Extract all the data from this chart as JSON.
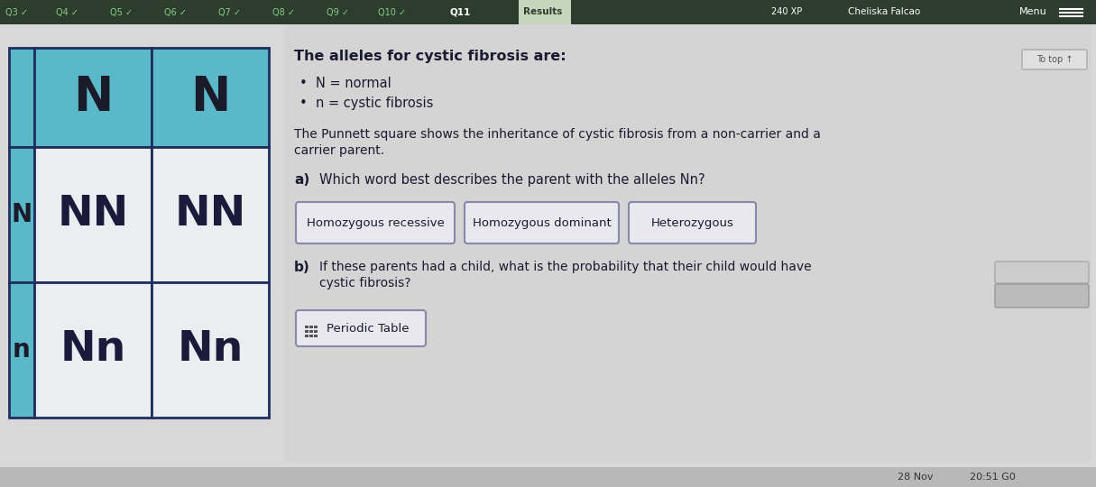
{
  "bg_color": "#d8d8d8",
  "top_bar_color": "#2d3d2d",
  "nav_items": [
    "Q3",
    "Q4",
    "Q5",
    "Q6",
    "Q7",
    "Q8",
    "Q9",
    "Q10",
    "Q11",
    "Results"
  ],
  "nav_checks": [
    true,
    true,
    true,
    true,
    true,
    true,
    true,
    true,
    false,
    false
  ],
  "nav_active_idx": 8,
  "nav_highlight_idx": 9,
  "top_right_xp": "240 XP",
  "top_right_name": "Cheliska Falcao",
  "top_right_menu": "Menu",
  "punnett_teal": "#5bb8c8",
  "punnett_white": "#eaeef0",
  "punnett_border": "#1e2e5e",
  "punnett_header_letters": [
    "N",
    "N"
  ],
  "punnett_row_labels": [
    "N",
    "n"
  ],
  "punnett_cells": [
    [
      "NN",
      "NN"
    ],
    [
      "Nn",
      "Nn"
    ]
  ],
  "content_bg": "#cccccc",
  "text_color": "#1a1a30",
  "title": "The alleles for cystic fibrosis are:",
  "bullet1": "N = normal",
  "bullet2": "n = cystic fibrosis",
  "para_line1": "The Punnett square shows the inheritance of cystic fibrosis from a non-carrier and a",
  "para_line2": "carrier parent.",
  "qa_label": "a)",
  "qa_text": "Which word best describes the parent with the alleles Nn?",
  "buttons_a": [
    "Homozygous recessive",
    "Homozygous dominant",
    "Heterozygous"
  ],
  "qb_label": "b)",
  "qb_line1": "If these parents had a child, what is the probability that their child would have",
  "qb_line2": "cystic fibrosis?",
  "periodic_btn": "Periodic Table",
  "totop_btn": "To top ↑",
  "bottom_color": "#b8b8b8",
  "bottom_text_left": "28 Nov",
  "bottom_text_right": "20:51 G0"
}
